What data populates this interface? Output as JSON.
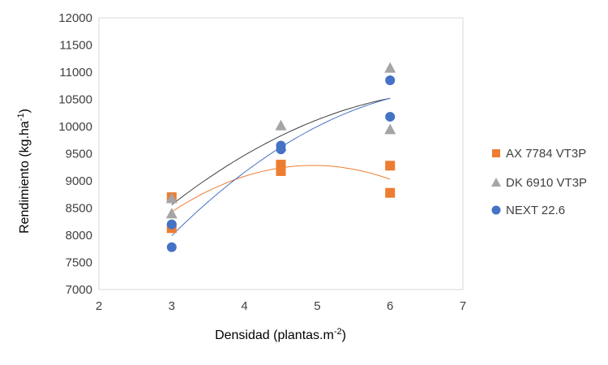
{
  "chart_data": {
    "type": "scatter",
    "title": "",
    "xlabel": "Densidad (plantas.m",
    "xlabel_sup": "-2",
    "xlabel_end": ")",
    "ylabel": "Rendimiento (kg.ha",
    "ylabel_sup": "-1",
    "ylabel_end": ")",
    "xlim": [
      2,
      7
    ],
    "ylim": [
      7000,
      12000
    ],
    "xticks": [
      "2",
      "3",
      "4",
      "5",
      "6",
      "7"
    ],
    "yticks": [
      "7000",
      "7500",
      "8000",
      "8500",
      "9000",
      "9500",
      "10000",
      "10500",
      "11000",
      "11500",
      "12000"
    ],
    "series": [
      {
        "name": "AX 7784 VT3P",
        "marker": "square",
        "color": "#ED7D31",
        "points": [
          [
            3,
            8700
          ],
          [
            3,
            8130
          ],
          [
            4.5,
            9300
          ],
          [
            4.5,
            9180
          ],
          [
            6,
            9280
          ],
          [
            6,
            8780
          ]
        ],
        "trend": {
          "type": "quadratic",
          "through": [
            [
              3,
              8430
            ],
            [
              4.5,
              9240
            ],
            [
              6,
              9030
            ]
          ]
        }
      },
      {
        "name": "DK 6910 VT3P",
        "marker": "triangle",
        "color": "#A5A5A5",
        "points": [
          [
            3,
            8680
          ],
          [
            3,
            8400
          ],
          [
            4.5,
            10020
          ],
          [
            4.5,
            9640
          ],
          [
            6,
            11080
          ],
          [
            6,
            9950
          ]
        ],
        "trend": {
          "type": "quadratic",
          "color": "#404040",
          "through": [
            [
              3,
              8560
            ],
            [
              4.5,
              9830
            ],
            [
              6,
              10520
            ]
          ]
        }
      },
      {
        "name": "NEXT 22.6",
        "marker": "circle",
        "color": "#4472C4",
        "points": [
          [
            3,
            8200
          ],
          [
            3,
            7780
          ],
          [
            4.5,
            9650
          ],
          [
            4.5,
            9580
          ],
          [
            6,
            10850
          ],
          [
            6,
            10180
          ]
        ],
        "trend": {
          "type": "quadratic",
          "through": [
            [
              3,
              7990
            ],
            [
              4.5,
              9620
            ],
            [
              6,
              10520
            ]
          ]
        }
      }
    ],
    "legend_position": "right",
    "grid": false
  }
}
